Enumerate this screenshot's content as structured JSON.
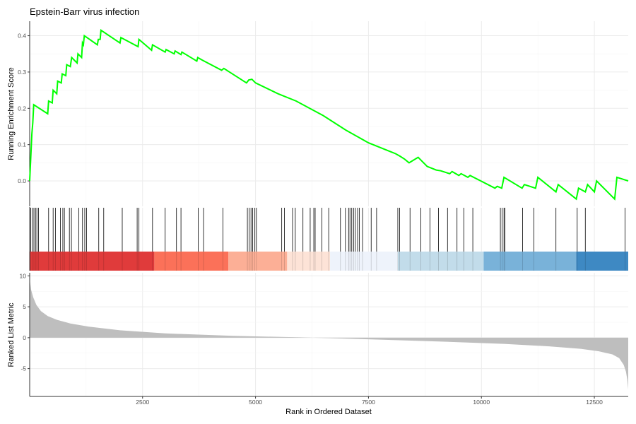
{
  "chart_data": {
    "type": "line",
    "title": "Epstein-Barr virus infection",
    "xlabel": "Rank in Ordered Dataset",
    "xlim": [
      1,
      13250
    ],
    "x_ticks": [
      2500,
      5000,
      7500,
      10000,
      12500
    ],
    "grid": true,
    "panels": {
      "enrichment": {
        "ylabel": "Running Enrichment Score",
        "ylim": [
          -0.07,
          0.44
        ],
        "y_ticks": [
          0.0,
          0.1,
          0.2,
          0.3,
          0.4
        ],
        "y_tick_labels": [
          "0.0",
          "0.1",
          "0.2",
          "0.3",
          "0.4"
        ],
        "line_color": "#00ff00",
        "series": [
          {
            "x": [
              1,
              50,
              70,
              90,
              400,
              420,
              500,
              520,
              600,
              620,
              700,
              720,
              800,
              820,
              900,
              930,
              1050,
              1070,
              1150,
              1170,
              1190,
              1210,
              1500,
              1520,
              1560,
              1580,
              2000,
              2020,
              2400,
              2420,
              2700,
              2720,
              3000,
              3020,
              3200,
              3220,
              3350,
              3370,
              3700,
              3720,
              3820,
              4250,
              4300,
              4800,
              4850,
              4920,
              5000,
              5500,
              5900,
              6500,
              7000,
              7500,
              8000,
              8100,
              8200,
              8300,
              8400,
              8600,
              8800,
              8900,
              9000,
              9100,
              9300,
              9350,
              9500,
              9550,
              9700,
              9750,
              10300,
              10350,
              10450,
              10500,
              10900,
              10950,
              11200,
              11250,
              11650,
              11700,
              12100,
              12150,
              12300,
              12350,
              12500,
              12550,
              12950,
              13000,
              13250
            ],
            "y": [
              0.0,
              0.13,
              0.16,
              0.21,
              0.185,
              0.22,
              0.215,
              0.25,
              0.24,
              0.275,
              0.27,
              0.295,
              0.29,
              0.32,
              0.315,
              0.34,
              0.325,
              0.35,
              0.34,
              0.38,
              0.375,
              0.4,
              0.375,
              0.39,
              0.39,
              0.415,
              0.38,
              0.395,
              0.37,
              0.39,
              0.36,
              0.375,
              0.355,
              0.362,
              0.35,
              0.358,
              0.348,
              0.355,
              0.33,
              0.34,
              0.333,
              0.305,
              0.31,
              0.27,
              0.278,
              0.28,
              0.27,
              0.24,
              0.22,
              0.18,
              0.14,
              0.105,
              0.08,
              0.075,
              0.068,
              0.06,
              0.05,
              0.065,
              0.04,
              0.035,
              0.03,
              0.028,
              0.02,
              0.026,
              0.015,
              0.02,
              0.01,
              0.015,
              -0.02,
              -0.015,
              -0.02,
              0.01,
              -0.02,
              -0.01,
              -0.02,
              0.01,
              -0.03,
              -0.01,
              -0.05,
              -0.02,
              -0.03,
              -0.01,
              -0.03,
              0.0,
              -0.05,
              0.01,
              0.0
            ]
          }
        ]
      },
      "hits": {
        "positions": [
          25,
          60,
          95,
          130,
          160,
          195,
          420,
          520,
          570,
          680,
          735,
          770,
          880,
          925,
          1090,
          1170,
          1220,
          1260,
          1530,
          1640,
          2050,
          2380,
          2420,
          2720,
          3000,
          3250,
          3350,
          3730,
          3850,
          4280,
          4820,
          4860,
          4900,
          4935,
          4980,
          5020,
          5580,
          5640,
          5820,
          5880,
          6050,
          6210,
          6290,
          6320,
          6470,
          6620,
          6880,
          6990,
          7060,
          7090,
          7130,
          7170,
          7210,
          7260,
          7300,
          7370,
          7560,
          7680,
          8150,
          8190,
          8420,
          8660,
          8860,
          9050,
          9250,
          9460,
          9610,
          9810,
          10420,
          10460,
          10500,
          10520,
          10910,
          11160,
          11650,
          12120,
          12300,
          13180
        ]
      },
      "color_band": {
        "segments": [
          {
            "start": 1,
            "end": 2760,
            "color": "#e03b3b"
          },
          {
            "start": 2760,
            "end": 4400,
            "color": "#fb7159"
          },
          {
            "start": 4400,
            "end": 5700,
            "color": "#fcaf96"
          },
          {
            "start": 5700,
            "end": 6650,
            "color": "#fde3d7"
          },
          {
            "start": 6650,
            "end": 8150,
            "color": "#eef3fb"
          },
          {
            "start": 8150,
            "end": 10050,
            "color": "#c2dcea"
          },
          {
            "start": 10050,
            "end": 12100,
            "color": "#79b2d9"
          },
          {
            "start": 12100,
            "end": 13250,
            "color": "#3e89c3"
          }
        ]
      },
      "ranked_metric": {
        "ylabel": "Ranked List Metric",
        "ylim": [
          -9.5,
          10.5
        ],
        "y_ticks": [
          -5,
          0,
          5,
          10
        ],
        "y_tick_labels": [
          "-5",
          "0",
          "5",
          "10"
        ],
        "fill_color": "#bebebe",
        "curve": {
          "x": [
            1,
            30,
            80,
            150,
            250,
            400,
            600,
            900,
            1300,
            2000,
            3000,
            4500,
            6000,
            7500,
            9000,
            10500,
            11500,
            12200,
            12600,
            12900,
            13050,
            13150,
            13200,
            13230,
            13250
          ],
          "y": [
            9.5,
            7.8,
            6.5,
            5.3,
            4.3,
            3.5,
            2.9,
            2.3,
            1.8,
            1.2,
            0.7,
            0.3,
            0.05,
            -0.25,
            -0.6,
            -1.0,
            -1.4,
            -1.8,
            -2.2,
            -2.7,
            -3.3,
            -4.4,
            -5.5,
            -6.8,
            -8.4
          ]
        }
      }
    }
  }
}
